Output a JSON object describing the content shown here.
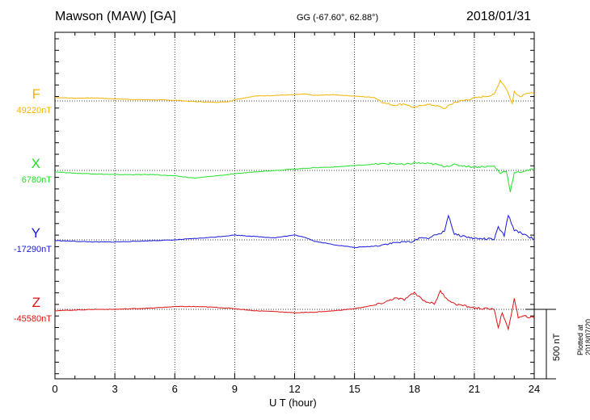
{
  "header": {
    "station": "Mawson (MAW)  [GA]",
    "coords": "GG (-67.60°,  62.88°)",
    "date": "2018/01/31"
  },
  "plotted_note": "Plotted at 2018/07/20 02:58 UT",
  "chart_data": {
    "type": "line",
    "xlabel": "U T (hour)",
    "xlim": [
      0,
      24
    ],
    "x_ticks": [
      "0",
      "3",
      "6",
      "9",
      "12",
      "15",
      "18",
      "21",
      "24"
    ],
    "scale_bar": {
      "label": "500 nT",
      "value_nT": 500
    },
    "series": [
      {
        "name": "F",
        "baseline_label": "49220nT",
        "baseline_nT": 49220,
        "color": "#f5b400",
        "points": [
          [
            0,
            25
          ],
          [
            1,
            20
          ],
          [
            2,
            22
          ],
          [
            3,
            15
          ],
          [
            4,
            10
          ],
          [
            5,
            8
          ],
          [
            6,
            5
          ],
          [
            7,
            -5
          ],
          [
            8,
            -10
          ],
          [
            8.7,
            -5
          ],
          [
            9,
            10
          ],
          [
            10,
            35
          ],
          [
            11,
            40
          ],
          [
            12,
            45
          ],
          [
            12.5,
            50
          ],
          [
            13,
            40
          ],
          [
            14,
            45
          ],
          [
            15,
            35
          ],
          [
            16,
            25
          ],
          [
            16.5,
            -15
          ],
          [
            17,
            -30
          ],
          [
            17.5,
            -20
          ],
          [
            18,
            -50
          ],
          [
            18.5,
            -25
          ],
          [
            19,
            -30
          ],
          [
            19.5,
            -55
          ],
          [
            20,
            -10
          ],
          [
            21,
            20
          ],
          [
            22,
            45
          ],
          [
            22.3,
            150
          ],
          [
            22.6,
            90
          ],
          [
            22.9,
            -20
          ],
          [
            23,
            70
          ],
          [
            23.3,
            30
          ],
          [
            23.6,
            60
          ],
          [
            24,
            50
          ]
        ]
      },
      {
        "name": "X",
        "baseline_label": "6780nT",
        "baseline_nT": 6780,
        "color": "#22e02a",
        "points": [
          [
            0,
            -10
          ],
          [
            1,
            -20
          ],
          [
            2,
            -25
          ],
          [
            3,
            -30
          ],
          [
            4,
            -30
          ],
          [
            5,
            -30
          ],
          [
            6,
            -40
          ],
          [
            7,
            -55
          ],
          [
            8,
            -40
          ],
          [
            9,
            -25
          ],
          [
            10,
            -10
          ],
          [
            11,
            0
          ],
          [
            12,
            10
          ],
          [
            13,
            20
          ],
          [
            14,
            25
          ],
          [
            15,
            35
          ],
          [
            16,
            45
          ],
          [
            17,
            50
          ],
          [
            17.5,
            40
          ],
          [
            18,
            55
          ],
          [
            19,
            45
          ],
          [
            19.5,
            30
          ],
          [
            20,
            40
          ],
          [
            21,
            25
          ],
          [
            22,
            30
          ],
          [
            22.3,
            -20
          ],
          [
            22.6,
            0
          ],
          [
            22.8,
            -150
          ],
          [
            23,
            -20
          ],
          [
            24,
            10
          ]
        ]
      },
      {
        "name": "Y",
        "baseline_label": "-17290nT",
        "baseline_nT": -17290,
        "color": "#1818dc",
        "points": [
          [
            0,
            -5
          ],
          [
            1,
            -10
          ],
          [
            2,
            -15
          ],
          [
            3,
            -15
          ],
          [
            4,
            -10
          ],
          [
            5,
            -5
          ],
          [
            6,
            0
          ],
          [
            7,
            10
          ],
          [
            8,
            20
          ],
          [
            9,
            35
          ],
          [
            10,
            25
          ],
          [
            11,
            15
          ],
          [
            12,
            35
          ],
          [
            12.5,
            20
          ],
          [
            13,
            -10
          ],
          [
            14,
            -35
          ],
          [
            15,
            -55
          ],
          [
            16,
            -45
          ],
          [
            17,
            -20
          ],
          [
            18,
            -10
          ],
          [
            18.3,
            20
          ],
          [
            18.6,
            10
          ],
          [
            19,
            30
          ],
          [
            19.5,
            60
          ],
          [
            19.7,
            180
          ],
          [
            20,
            40
          ],
          [
            21,
            10
          ],
          [
            22,
            5
          ],
          [
            22.2,
            90
          ],
          [
            22.5,
            30
          ],
          [
            22.7,
            180
          ],
          [
            23,
            70
          ],
          [
            23.5,
            40
          ],
          [
            24,
            5
          ]
        ]
      },
      {
        "name": "Z",
        "baseline_label": "-45580nT",
        "baseline_nT": -45580,
        "color": "#e01010",
        "points": [
          [
            0,
            -10
          ],
          [
            1,
            -5
          ],
          [
            2,
            0
          ],
          [
            3,
            0
          ],
          [
            4,
            5
          ],
          [
            5,
            10
          ],
          [
            6,
            20
          ],
          [
            7,
            20
          ],
          [
            8,
            15
          ],
          [
            9,
            5
          ],
          [
            10,
            -10
          ],
          [
            11,
            -15
          ],
          [
            12,
            -25
          ],
          [
            13,
            -20
          ],
          [
            14,
            -10
          ],
          [
            15,
            5
          ],
          [
            16,
            30
          ],
          [
            16.5,
            50
          ],
          [
            17,
            80
          ],
          [
            17.5,
            70
          ],
          [
            18,
            120
          ],
          [
            18.5,
            60
          ],
          [
            19,
            40
          ],
          [
            19.3,
            130
          ],
          [
            19.6,
            80
          ],
          [
            20,
            40
          ],
          [
            21,
            10
          ],
          [
            22,
            0
          ],
          [
            22.2,
            -130
          ],
          [
            22.4,
            -20
          ],
          [
            22.7,
            -150
          ],
          [
            23,
            80
          ],
          [
            23.2,
            -60
          ],
          [
            23.5,
            -50
          ],
          [
            24,
            -60
          ]
        ]
      }
    ]
  }
}
